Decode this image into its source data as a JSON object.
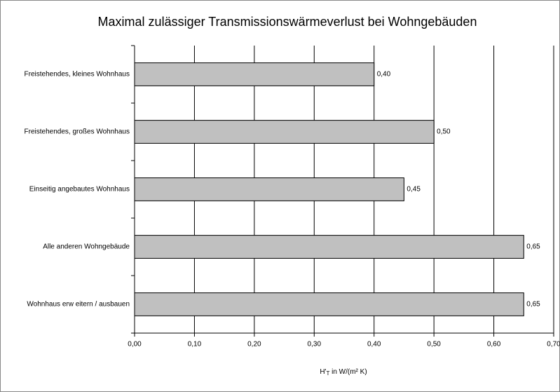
{
  "chart_data": {
    "type": "bar",
    "orientation": "horizontal",
    "title": "Maximal zulässiger Transmissionswärmeverlust bei Wohngebäuden",
    "xlabel": [
      "H'",
      "T",
      " in W/(m² K)"
    ],
    "categories": [
      "Freistehendes, kleines Wohnhaus",
      "Freistehendes, großes Wohnhaus",
      "Einseitig angebautes Wohnhaus",
      "Alle anderen Wohngebäude",
      "Wohnhaus erw eitern / ausbauen"
    ],
    "values": [
      0.4,
      0.5,
      0.45,
      0.65,
      0.65
    ],
    "value_labels": [
      "0,40",
      "0,50",
      "0,45",
      "0,65",
      "0,65"
    ],
    "color": "#c0c0c0",
    "xlim": [
      0,
      0.7
    ],
    "xticks": [
      {
        "value": 0,
        "label": "0,00"
      },
      {
        "value": 0.1,
        "label": "0,10"
      },
      {
        "value": 0.2,
        "label": "0,20"
      },
      {
        "value": 0.3,
        "label": "0,30"
      },
      {
        "value": 0.4,
        "label": "0,40"
      },
      {
        "value": 0.5,
        "label": "0,50"
      },
      {
        "value": 0.6,
        "label": "0,60"
      },
      {
        "value": 0.7,
        "label": "0,70"
      }
    ],
    "grid": true
  }
}
